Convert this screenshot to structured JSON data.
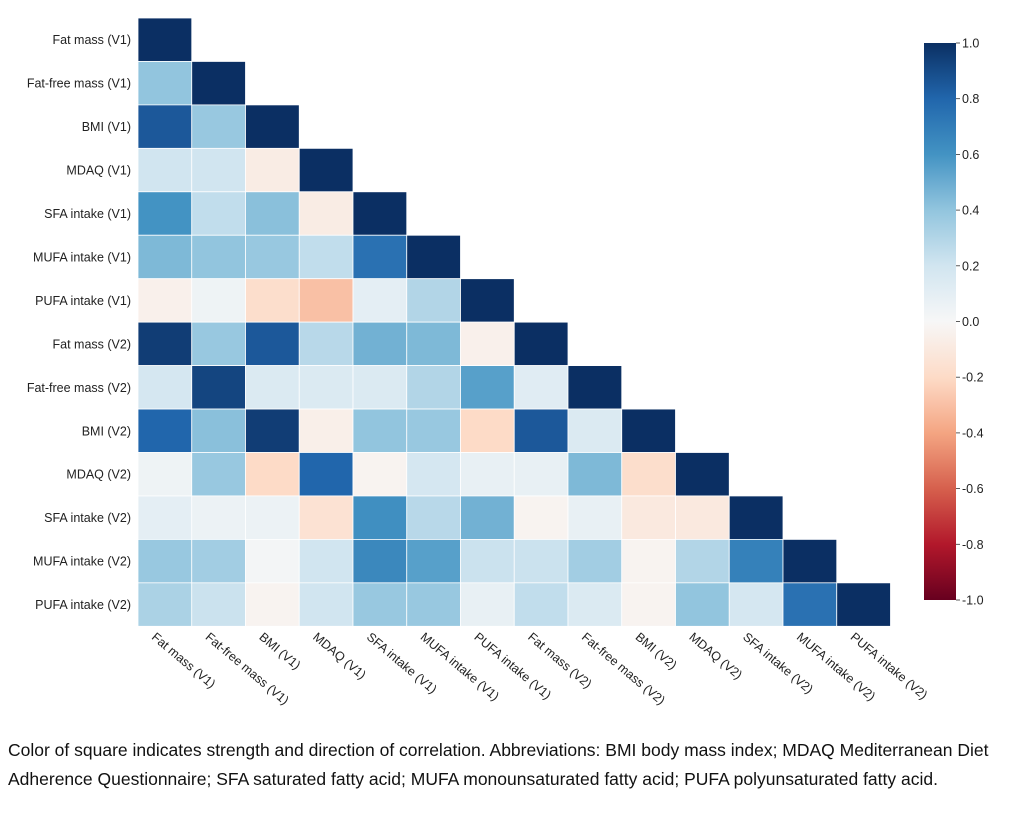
{
  "chart_data": {
    "type": "heatmap",
    "subtype": "lower-triangular correlation matrix",
    "labels": [
      "Fat mass (V1)",
      "Fat-free mass (V1)",
      "BMI (V1)",
      "MDAQ (V1)",
      "SFA intake (V1)",
      "MUFA intake (V1)",
      "PUFA intake (V1)",
      "Fat mass (V2)",
      "Fat-free mass (V2)",
      "BMI (V2)",
      "MDAQ (V2)",
      "SFA intake (V2)",
      "MUFA intake (V2)",
      "PUFA intake (V2)"
    ],
    "matrix": [
      [
        1.0
      ],
      [
        0.4,
        1.0
      ],
      [
        0.85,
        0.38,
        1.0
      ],
      [
        0.2,
        0.2,
        -0.08,
        1.0
      ],
      [
        0.6,
        0.25,
        0.42,
        -0.08,
        1.0
      ],
      [
        0.45,
        0.4,
        0.38,
        0.25,
        0.75,
        1.0
      ],
      [
        -0.05,
        0.05,
        -0.18,
        -0.3,
        0.1,
        0.3,
        1.0
      ],
      [
        0.95,
        0.38,
        0.85,
        0.28,
        0.48,
        0.45,
        -0.05,
        1.0
      ],
      [
        0.18,
        0.92,
        0.15,
        0.15,
        0.15,
        0.3,
        0.55,
        0.12,
        1.0
      ],
      [
        0.8,
        0.42,
        0.95,
        -0.06,
        0.4,
        0.38,
        -0.2,
        0.85,
        0.15,
        1.0
      ],
      [
        0.05,
        0.38,
        -0.2,
        0.8,
        -0.03,
        0.18,
        0.08,
        0.08,
        0.45,
        -0.18,
        1.0
      ],
      [
        0.1,
        0.06,
        0.06,
        -0.15,
        0.62,
        0.28,
        0.48,
        -0.03,
        0.08,
        -0.1,
        -0.1,
        1.0
      ],
      [
        0.38,
        0.35,
        0.02,
        0.2,
        0.65,
        0.55,
        0.22,
        0.22,
        0.35,
        -0.03,
        0.3,
        0.68,
        1.0
      ],
      [
        0.32,
        0.22,
        -0.03,
        0.2,
        0.38,
        0.38,
        0.08,
        0.25,
        0.15,
        -0.03,
        0.4,
        0.18,
        0.75,
        1.0
      ]
    ],
    "colorbar": {
      "vmin": -1.0,
      "vmax": 1.0,
      "ticks": [
        "1.0",
        "0.8",
        "0.6",
        "0.4",
        "0.2",
        "0.0",
        "-0.2",
        "-0.4",
        "-0.6",
        "-0.8",
        "-1.0"
      ],
      "colormap": "RdBu",
      "placement": "right"
    },
    "colors": {
      "positive_max": "#0b2f63",
      "negative_max": "#67001f",
      "neutral": "#f7f7f7"
    }
  },
  "caption": "Color of square indicates strength and direction of correlation. Abbreviations: BMI body mass index; MDAQ Mediterranean Diet Adherence Questionnaire; SFA saturated fatty acid; MUFA monounsaturated fatty acid; PUFA polyunsaturated fatty acid."
}
